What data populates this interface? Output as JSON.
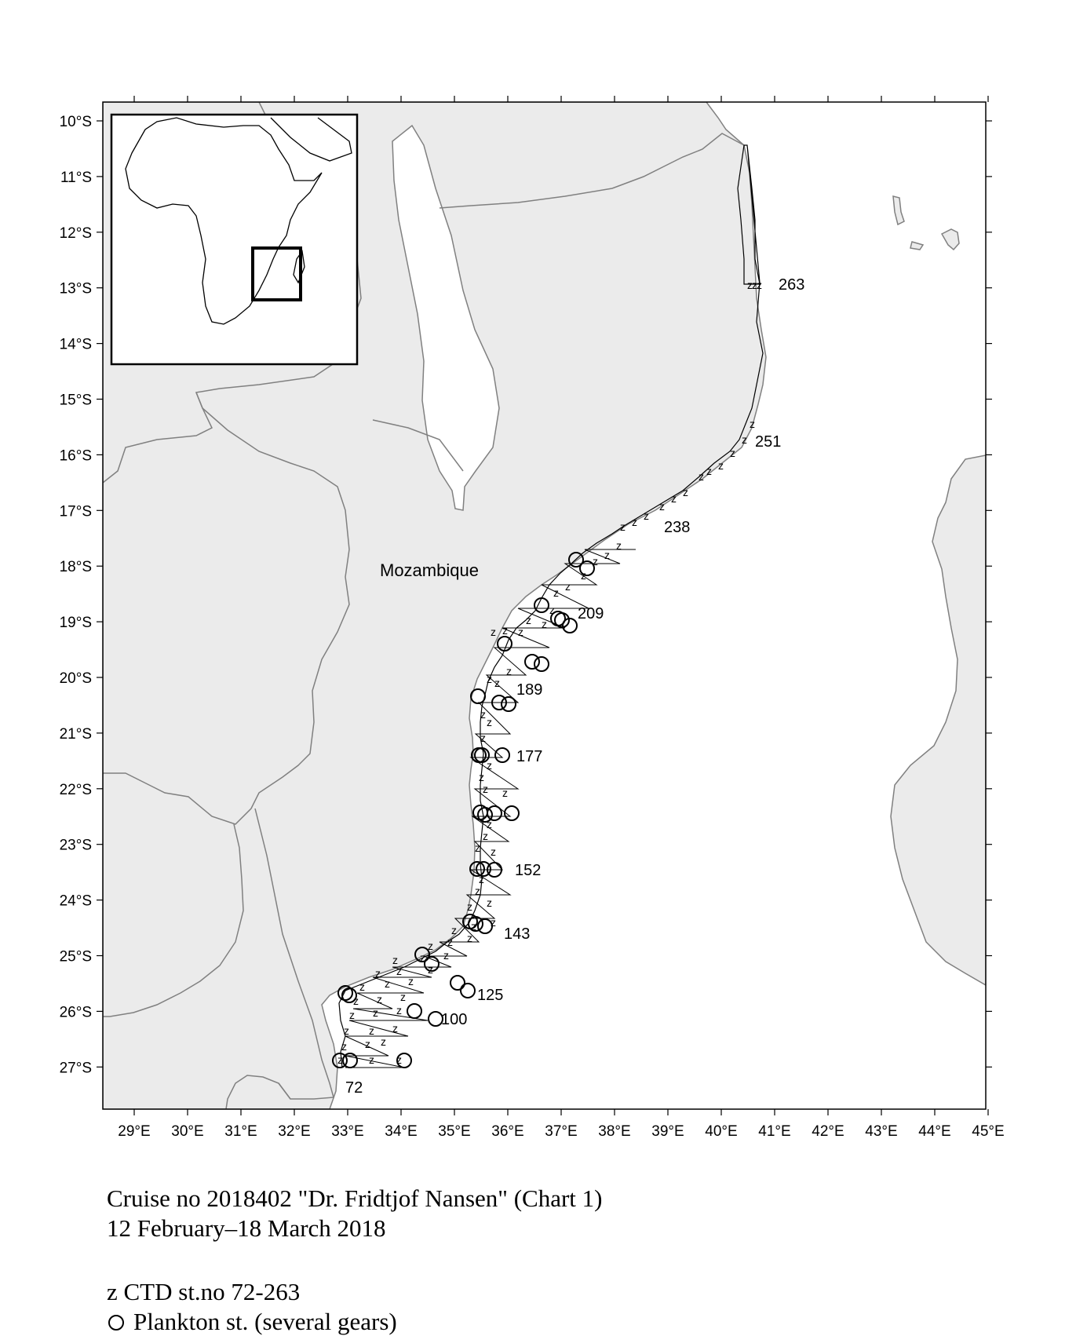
{
  "map": {
    "country_label": "Mozambique",
    "lat_labels": [
      "10°S",
      "11°S",
      "12°S",
      "13°S",
      "14°S",
      "15°S",
      "16°S",
      "17°S",
      "18°S",
      "19°S",
      "20°S",
      "21°S",
      "22°S",
      "23°S",
      "24°S",
      "25°S",
      "26°S",
      "27°S"
    ],
    "lon_labels": [
      "29°E",
      "30°E",
      "31°E",
      "32°E",
      "33°E",
      "34°E",
      "35°E",
      "36°E",
      "37°E",
      "38°E",
      "39°E",
      "40°E",
      "41°E",
      "42°E",
      "43°E",
      "44°E",
      "45°E"
    ],
    "station_labels": [
      "263",
      "251",
      "238",
      "209",
      "189",
      "177",
      "152",
      "143",
      "125",
      "100",
      "72"
    ],
    "land_color": "#ebebeb",
    "border_color": "#808080"
  },
  "caption": {
    "line1": "Cruise no 2018402  \"Dr. Fridtjof Nansen\" (Chart 1)",
    "line2": "12 February–18 March 2018",
    "legend_ctd": "z CTD st.no 72-263",
    "legend_plankton": "Plankton st. (several gears)"
  }
}
